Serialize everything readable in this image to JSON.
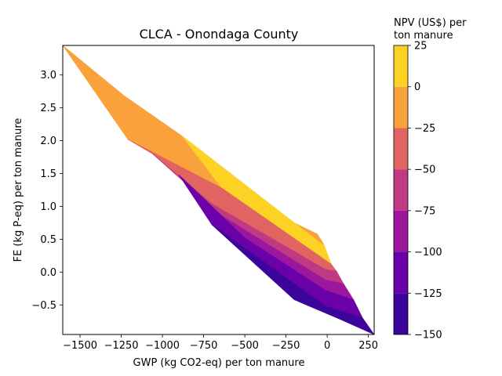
{
  "chart_data": {
    "type": "contour",
    "title": "CLCA - Onondaga County",
    "xlabel": "GWP (kg CO2-eq) per ton manure",
    "ylabel": "FE (kg P-eq) per ton manure",
    "xlim": [
      -1605,
      285
    ],
    "ylim": [
      -0.95,
      3.45
    ],
    "x_ticks": [
      -1500,
      -1250,
      -1000,
      -750,
      -500,
      -250,
      0,
      250
    ],
    "x_tick_labels": [
      "−1500",
      "−1250",
      "−1000",
      "−750",
      "−500",
      "−250",
      "0",
      "250"
    ],
    "y_ticks": [
      -0.5,
      0.0,
      0.5,
      1.0,
      1.5,
      2.0,
      2.5,
      3.0
    ],
    "y_tick_labels": [
      "−0.5",
      "0.0",
      "0.5",
      "1.0",
      "1.5",
      "2.0",
      "2.5",
      "3.0"
    ],
    "colorbar": {
      "label_lines": [
        "NPV (US$) per",
        "ton manure"
      ],
      "levels": [
        -150,
        -125,
        -100,
        -75,
        -50,
        -25,
        0,
        25
      ],
      "tick_labels": [
        "−150",
        "−125",
        "−100",
        "−75",
        "−50",
        "−25",
        "0",
        "25"
      ],
      "colors": [
        "#3b049a",
        "#6a00a8",
        "#9c179e",
        "#c03a83",
        "#e16462",
        "#f9a23c",
        "#fcd225"
      ]
    },
    "regions": [
      {
        "range": [
          -25,
          0
        ],
        "color": "#f9a23c",
        "polygon": [
          [
            -1605,
            3.45
          ],
          [
            -1210,
            2.02
          ],
          [
            -1060,
            1.8
          ],
          [
            -900,
            1.62
          ],
          [
            -640,
            1.28
          ],
          [
            -60,
            0.58
          ],
          [
            -20,
            0.42
          ],
          [
            -30,
            0.42
          ],
          [
            -880,
            2.07
          ],
          [
            -1230,
            2.68
          ]
        ]
      },
      {
        "range": [
          0,
          25
        ],
        "color": "#fcd225",
        "polygon": [
          [
            -880,
            2.07
          ],
          [
            -30,
            0.42
          ],
          [
            -20,
            0.42
          ],
          [
            25,
            0.12
          ],
          [
            -640,
            1.28
          ]
        ]
      },
      {
        "range": [
          -50,
          -25
        ],
        "color": "#e16462",
        "polygon": [
          [
            -1210,
            2.02
          ],
          [
            -640,
            1.28
          ],
          [
            25,
            0.12
          ],
          [
            55,
            0.02
          ],
          [
            -10,
            0.04
          ],
          [
            -700,
            1.04
          ],
          [
            -1060,
            1.8
          ]
        ]
      },
      {
        "range": [
          -75,
          -50
        ],
        "color": "#c03a83",
        "polygon": [
          [
            -1060,
            1.8
          ],
          [
            -700,
            1.04
          ],
          [
            -10,
            0.04
          ],
          [
            55,
            0.02
          ],
          [
            100,
            -0.18
          ],
          [
            -10,
            -0.12
          ],
          [
            -640,
            0.86
          ]
        ]
      },
      {
        "range": [
          -100,
          -75
        ],
        "color": "#9c179e",
        "polygon": [
          [
            -640,
            0.86
          ],
          [
            -10,
            -0.12
          ],
          [
            100,
            -0.18
          ],
          [
            160,
            -0.42
          ],
          [
            -10,
            -0.28
          ],
          [
            -500,
            0.52
          ],
          [
            -900,
            1.48
          ]
        ]
      },
      {
        "range": [
          -125,
          -100
        ],
        "color": "#6a00a8",
        "polygon": [
          [
            -900,
            1.48
          ],
          [
            -500,
            0.52
          ],
          [
            -10,
            -0.28
          ],
          [
            160,
            -0.42
          ],
          [
            215,
            -0.7
          ],
          [
            -10,
            -0.52
          ],
          [
            -700,
            0.72
          ]
        ]
      },
      {
        "range": [
          -150,
          -125
        ],
        "color": "#3b049a",
        "polygon": [
          [
            -700,
            0.72
          ],
          [
            -10,
            -0.52
          ],
          [
            215,
            -0.7
          ],
          [
            285,
            -0.95
          ],
          [
            80,
            -0.72
          ],
          [
            -200,
            -0.42
          ]
        ]
      }
    ]
  }
}
